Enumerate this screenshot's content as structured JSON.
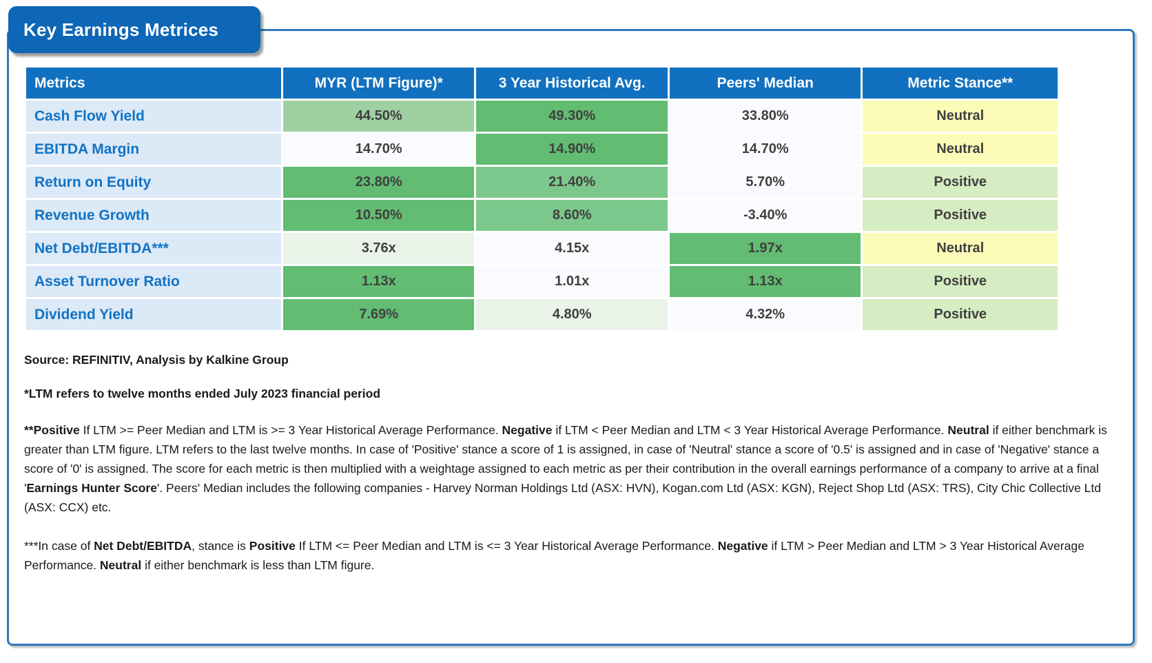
{
  "title": "Key Earnings Metrices",
  "colors": {
    "tab_blue": "#0D66B6",
    "frame_border_blue": "#2E79BE",
    "header_blue": "#1170BF",
    "metric_label_bg": "#DCE9F6",
    "metric_label_text": "#1173C5",
    "value_text": "#3F3F3F",
    "green_med": "#62BC72",
    "green_midlight": "#7CC78B",
    "green_light": "#9FD0A2",
    "green_vlight": "#E9F3E8",
    "white_cell": "#FAFBFE",
    "neutral_yellow": "#FCFCB8",
    "positive_green": "#D6ECC2"
  },
  "table": {
    "columns": [
      "Metrics",
      "MYR (LTM Figure)*",
      "3 Year Historical Avg.",
      "Peers' Median",
      "Metric Stance**"
    ],
    "rows": [
      {
        "metric": "Cash Flow Yield",
        "ltm": "44.50%",
        "hist": "49.30%",
        "peers": "33.80%",
        "stance": "Neutral",
        "fills": {
          "ltm": "green-light",
          "hist": "green-med",
          "peers": "white",
          "stance": "yellow"
        }
      },
      {
        "metric": "EBITDA Margin",
        "ltm": "14.70%",
        "hist": "14.90%",
        "peers": "14.70%",
        "stance": "Neutral",
        "fills": {
          "ltm": "white",
          "hist": "green-med",
          "peers": "white",
          "stance": "yellow"
        }
      },
      {
        "metric": "Return on Equity",
        "ltm": "23.80%",
        "hist": "21.40%",
        "peers": "5.70%",
        "stance": "Positive",
        "fills": {
          "ltm": "green-med",
          "hist": "green-midlight",
          "peers": "white",
          "stance": "positive-green"
        }
      },
      {
        "metric": "Revenue Growth",
        "ltm": "10.50%",
        "hist": "8.60%",
        "peers": "-3.40%",
        "stance": "Positive",
        "fills": {
          "ltm": "green-med",
          "hist": "green-midlight",
          "peers": "white",
          "stance": "positive-green"
        }
      },
      {
        "metric": "Net Debt/EBITDA***",
        "ltm": "3.76x",
        "hist": "4.15x",
        "peers": "1.97x",
        "stance": "Neutral",
        "fills": {
          "ltm": "green-vlight",
          "hist": "white",
          "peers": "green-med",
          "stance": "yellow"
        }
      },
      {
        "metric": "Asset Turnover Ratio",
        "ltm": "1.13x",
        "hist": "1.01x",
        "peers": "1.13x",
        "stance": "Positive",
        "fills": {
          "ltm": "green-med",
          "hist": "white",
          "peers": "green-med",
          "stance": "positive-green"
        }
      },
      {
        "metric": "Dividend Yield",
        "ltm": "7.69%",
        "hist": "4.80%",
        "peers": "4.32%",
        "stance": "Positive",
        "fills": {
          "ltm": "green-med",
          "hist": "green-vlight",
          "peers": "white",
          "stance": "positive-green"
        }
      }
    ]
  },
  "footnotes": {
    "source": "Source: REFINITIV, Analysis by Kalkine Group",
    "ltm_note": "*LTM refers to twelve months ended July 2023 financial period",
    "stance_note": [
      {
        "t": "**Positive",
        "b": true
      },
      {
        "t": " If LTM >= Peer Median and LTM is >= 3 Year Historical Average Performance. ",
        "b": false
      },
      {
        "t": "Negative",
        "b": true
      },
      {
        "t": " if LTM < Peer Median and LTM < 3 Year Historical Average Performance. ",
        "b": false
      },
      {
        "t": "Neutral",
        "b": true
      },
      {
        "t": " if either benchmark is greater than LTM figure. LTM refers to the last twelve months. In case of 'Positive' stance a score of 1 is assigned, in case of 'Neutral' stance a score of '0.5' is assigned and in case of 'Negative' stance a score of '0' is assigned. The score for each metric is then multiplied with a weightage assigned to each metric as per their contribution in the overall earnings performance of a company to arrive at a final '",
        "b": false
      },
      {
        "t": "Earnings Hunter Score",
        "b": true
      },
      {
        "t": "'. Peers' Median includes the following companies - Harvey Norman Holdings Ltd (ASX: HVN), Kogan.com Ltd (ASX: KGN), Reject Shop Ltd (ASX: TRS), City Chic Collective Ltd (ASX: CCX)  etc.",
        "b": false
      }
    ],
    "netdebt_note": [
      {
        "t": "***In case of ",
        "b": false
      },
      {
        "t": "Net Debt/EBITDA",
        "b": true
      },
      {
        "t": ", stance is ",
        "b": false
      },
      {
        "t": "Positive",
        "b": true
      },
      {
        "t": " If LTM <= Peer Median and LTM is <= 3 Year Historical Average Performance. ",
        "b": false
      },
      {
        "t": "Negative",
        "b": true
      },
      {
        "t": " if LTM > Peer Median and LTM > 3 Year Historical Average Performance. ",
        "b": false
      },
      {
        "t": "Neutral",
        "b": true
      },
      {
        "t": " if either benchmark is less than LTM figure.",
        "b": false
      }
    ]
  }
}
